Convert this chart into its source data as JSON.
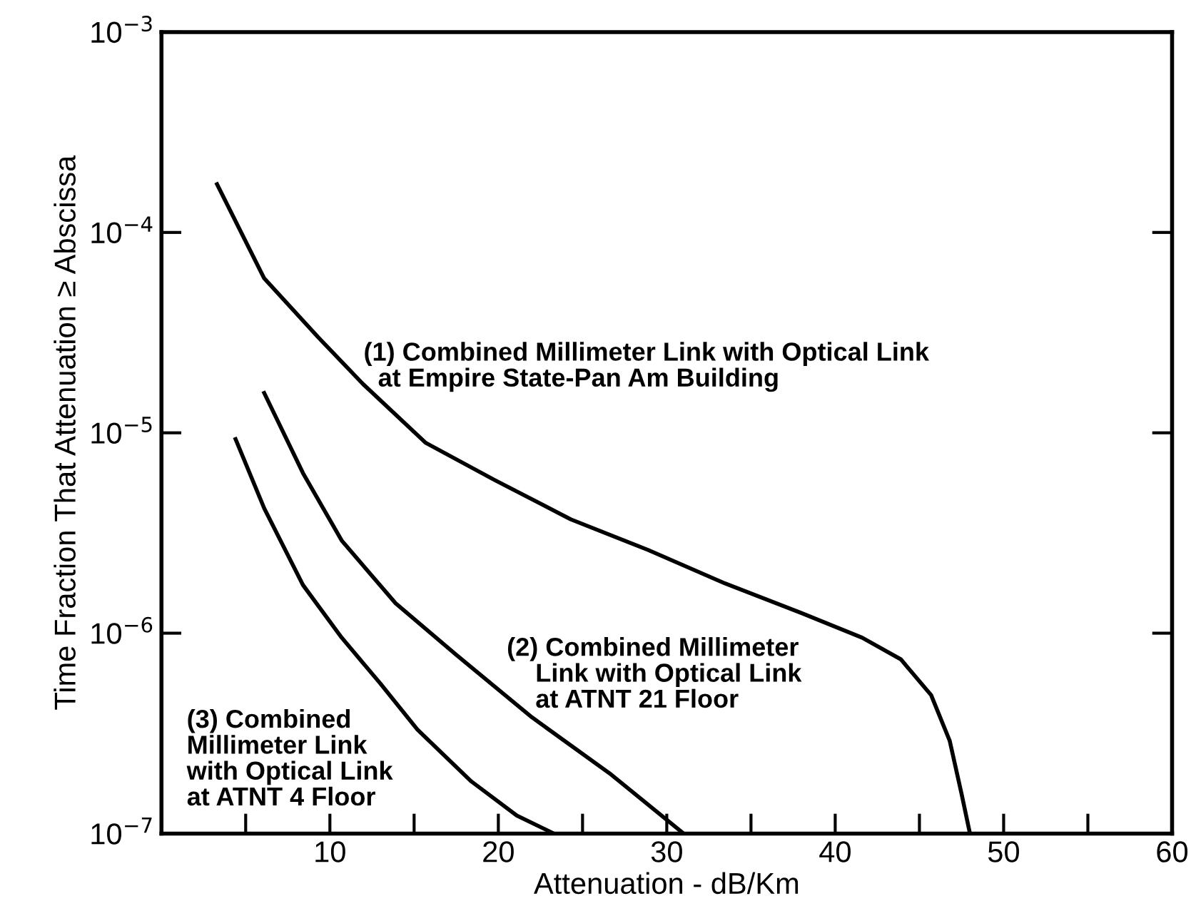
{
  "chart_data": {
    "type": "line",
    "xlabel": "Attenuation - dB/Km",
    "ylabel": "Time Fraction That Attenuation ≥ Abscissa",
    "log": "y",
    "grid": false,
    "marker": "none",
    "line_style": "solid",
    "xlim": [
      0,
      60
    ],
    "ylim": [
      1e-07,
      0.001
    ],
    "xticks": [
      {
        "value": 5,
        "label": null
      },
      10,
      {
        "value": 15,
        "label": null
      },
      20,
      {
        "value": 25,
        "label": null
      },
      30,
      {
        "value": 35,
        "label": null
      },
      40,
      {
        "value": 45,
        "label": null
      },
      50,
      {
        "value": 55,
        "label": null
      },
      60
    ],
    "yticks": [
      {
        "value": 1e-07,
        "label": "10$^{−7}$"
      },
      {
        "value": 1e-06,
        "label": "10$^{−6}$"
      },
      {
        "value": 1e-05,
        "label": "10$^{−5}$"
      },
      {
        "value": 0.0001,
        "label": "10$^{−4}$"
      },
      {
        "value": 0.001,
        "label": "10$^{−3}$"
      }
    ],
    "series": [
      {
        "color": "#000000",
        "x": [
          3.3,
          6.1,
          9.3,
          12.0,
          15.7,
          19.8,
          24.3,
          28.9,
          33.4,
          38.0,
          41.6,
          43.9,
          45.7,
          46.8,
          47.5,
          48.0
        ],
        "values": [
          0.000174,
          5.9e-05,
          3e-05,
          1.74e-05,
          8.9e-06,
          5.8e-06,
          3.7e-06,
          2.6e-06,
          1.78e-06,
          1.26e-06,
          9.5e-07,
          7.4e-07,
          4.9e-07,
          2.9e-07,
          1.58e-07,
          1e-07
        ]
      },
      {
        "color": "#000000",
        "x": [
          6.1,
          8.4,
          10.7,
          13.9,
          17.5,
          22.0,
          26.6,
          31.0
        ],
        "values": [
          1.58e-05,
          6.3e-06,
          2.9e-06,
          1.41e-06,
          7.8e-07,
          3.8e-07,
          2e-07,
          1e-07
        ]
      },
      {
        "color": "#000000",
        "x": [
          4.4,
          6.1,
          8.4,
          10.7,
          13.0,
          15.2,
          18.4,
          21.1,
          23.3
        ],
        "values": [
          9.3e-06,
          4.2e-06,
          1.74e-06,
          9.5e-07,
          5.6e-07,
          3.3e-07,
          1.82e-07,
          1.23e-07,
          1e-07
        ]
      }
    ],
    "annotations": [
      "(1) Combined Millimeter Link with Optical Link\n  at Empire State-Pan Am Building",
      "(2) Combined Millimeter\n    Link with Optical Link\n    at ATNT 21 Floor",
      "(3) Combined\nMillimeter Link\nwith Optical Link\nat ATNT 4 Floor"
    ]
  }
}
